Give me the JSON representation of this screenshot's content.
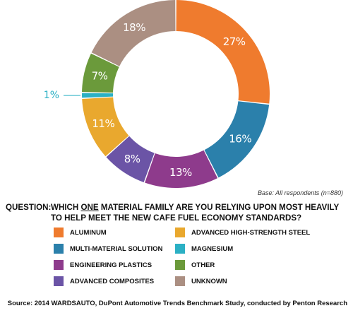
{
  "chart_data": {
    "type": "pie",
    "subtype": "donut",
    "slices": [
      {
        "label": "ALUMINUM",
        "value": 27,
        "display": "27%",
        "color": "#ef7b2e"
      },
      {
        "label": "MULTI-MATERIAL SOLUTION",
        "value": 16,
        "display": "16%",
        "color": "#2b80ab"
      },
      {
        "label": "ENGINEERING PLASTICS",
        "value": 13,
        "display": "13%",
        "color": "#8e3b8c"
      },
      {
        "label": "ADVANCED COMPOSITES",
        "value": 8,
        "display": "8%",
        "color": "#6b54a6"
      },
      {
        "label": "ADVANCED HIGH-STRENGTH STEEL",
        "value": 11,
        "display": "11%",
        "color": "#e9a82e"
      },
      {
        "label": "MAGNESIUM",
        "value": 1,
        "display": "1%",
        "color": "#2bb0c4"
      },
      {
        "label": "OTHER",
        "value": 7,
        "display": "7%",
        "color": "#6b9a3b"
      },
      {
        "label": "UNKNOWN",
        "value": 18,
        "display": "18%",
        "color": "#ab8f82"
      }
    ],
    "legend": [
      {
        "label": "ALUMINUM",
        "color": "#ef7b2e"
      },
      {
        "label": "ADVANCED HIGH-STRENGTH STEEL",
        "color": "#e9a82e"
      },
      {
        "label": "MULTI-MATERIAL SOLUTION",
        "color": "#2b80ab"
      },
      {
        "label": "MAGNESIUM",
        "color": "#2bb0c4"
      },
      {
        "label": "ENGINEERING PLASTICS",
        "color": "#8e3b8c"
      },
      {
        "label": "OTHER",
        "color": "#6b9a3b"
      },
      {
        "label": "ADVANCED COMPOSITES",
        "color": "#6b54a6"
      },
      {
        "label": "UNKNOWN",
        "color": "#ab8f82"
      }
    ],
    "legend_placement": "bottom",
    "base_note": "Base: All respondents (n=880)"
  },
  "question": {
    "prefix": "QUESTION:",
    "line1_before": "WHICH ",
    "line1_underlined": "ONE",
    "line1_after": " MATERIAL FAMILY ARE YOU RELYING UPON MOST HEAVILY",
    "line2": "TO HELP MEET THE NEW CAFE FUEL ECONOMY STANDARDS?"
  },
  "source": "Source: 2014 WARDSAUTO, DuPont Automotive Trends Benchmark Study, conducted by Penton Research"
}
